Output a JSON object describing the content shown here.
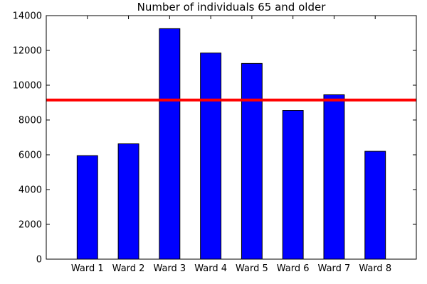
{
  "chart_data": {
    "type": "bar",
    "title": "Number of individuals 65 and older",
    "xlabel": "",
    "ylabel": "",
    "categories": [
      "Ward 1",
      "Ward 2",
      "Ward 3",
      "Ward 4",
      "Ward 5",
      "Ward 6",
      "Ward 7",
      "Ward 8"
    ],
    "values": [
      5950,
      6630,
      13250,
      11850,
      11250,
      8550,
      9450,
      6200
    ],
    "ylim": [
      0,
      14000
    ],
    "yticks": [
      0,
      2000,
      4000,
      6000,
      8000,
      10000,
      12000,
      14000
    ],
    "reference_line": 9150,
    "colors": {
      "bar": "#0000ff",
      "bar_edge": "#000000",
      "reference_line": "#ff0000"
    },
    "grid": false,
    "legend": "none"
  }
}
